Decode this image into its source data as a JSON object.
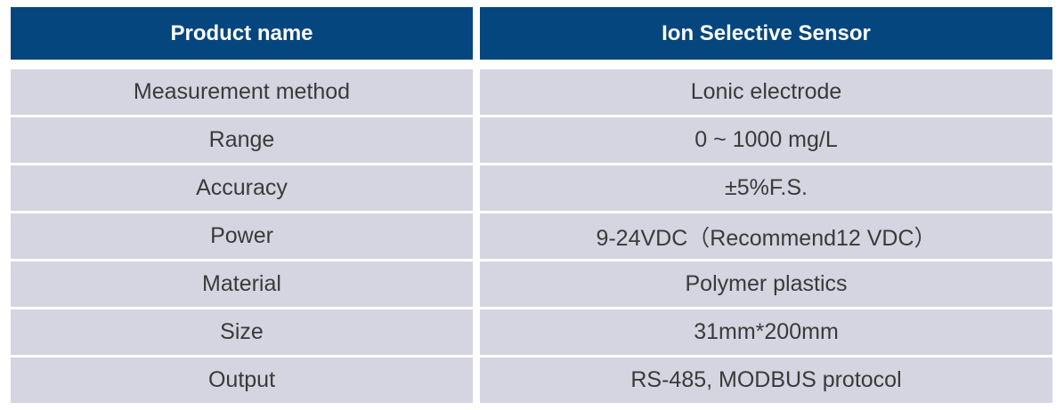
{
  "header": {
    "left": "Product name",
    "right": "Ion Selective Sensor"
  },
  "rows": [
    {
      "label": "Measurement method",
      "value": "Lonic electrode"
    },
    {
      "label": "Range",
      "value": "0 ~ 1000 mg/L"
    },
    {
      "label": "Accuracy",
      "value": "±5%F.S."
    },
    {
      "label": "Power",
      "value": "9-24VDC（Recommend12 VDC）"
    },
    {
      "label": "Material",
      "value": "Polymer plastics"
    },
    {
      "label": "Size",
      "value": "31mm*200mm"
    },
    {
      "label": "Output",
      "value": "RS-485, MODBUS protocol"
    }
  ],
  "colors": {
    "header_bg": "#05467f",
    "row_bg": "#d4d5e0",
    "text": "#3a3a3a"
  }
}
